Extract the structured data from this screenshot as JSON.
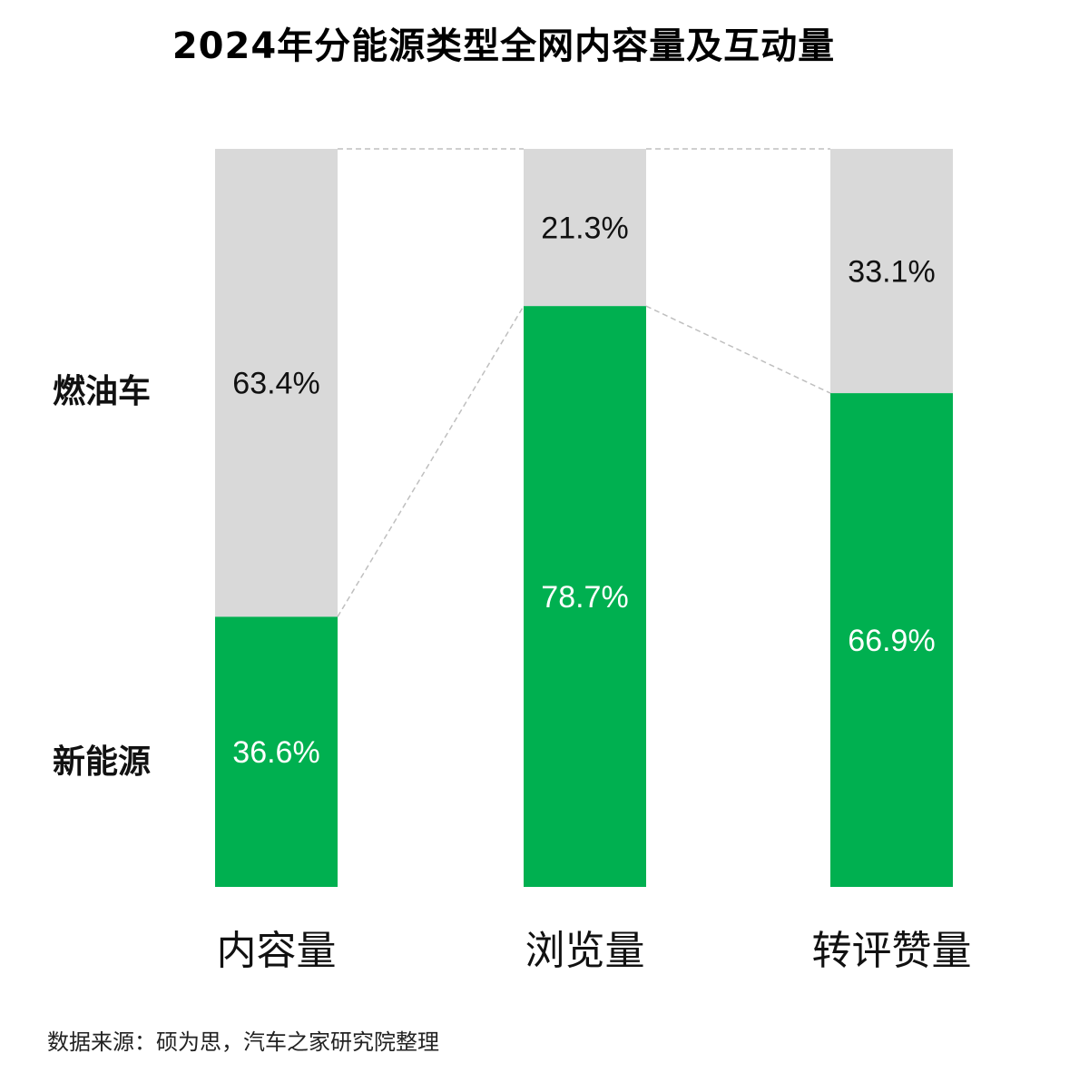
{
  "chart_data": {
    "type": "bar",
    "stacked": true,
    "title": "2024年分能源类型全网内容量及互动量",
    "categories": [
      "内容量",
      "浏览量",
      "转评赞量"
    ],
    "series": [
      {
        "name": "新能源",
        "values": [
          36.6,
          78.7,
          66.9
        ],
        "labels": [
          "36.6%",
          "78.7%",
          "66.9%"
        ],
        "color": "#00b050"
      },
      {
        "name": "燃油车",
        "values": [
          63.4,
          21.3,
          33.1
        ],
        "labels": [
          "63.4%",
          "21.3%",
          "33.1%"
        ],
        "color": "#d9d9d9"
      }
    ],
    "ylim": [
      0,
      100
    ],
    "grid": false,
    "legend_position": "left"
  },
  "source_note": "数据来源：硕为思，汽车之家研究院整理"
}
